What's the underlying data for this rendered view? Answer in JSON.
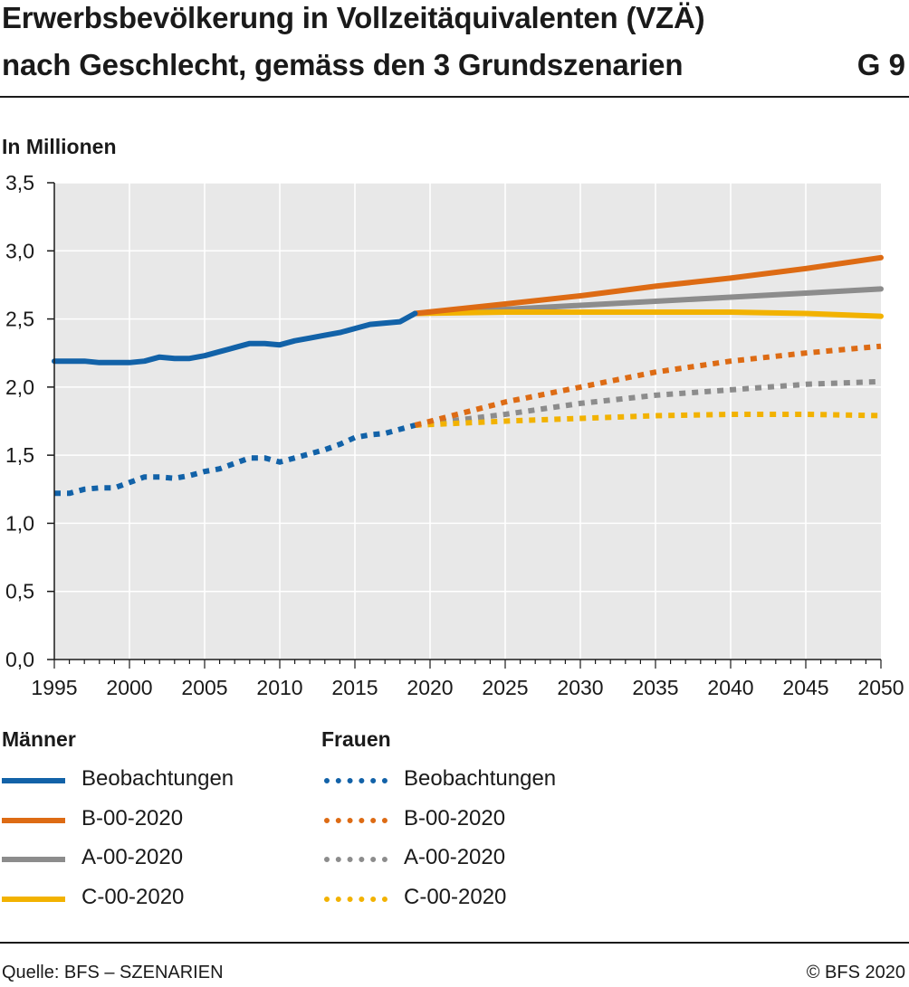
{
  "title": {
    "line1": "Erwerbsbevölkerung in Vollzeitäquivalenten (VZÄ)",
    "line2": "nach Geschlecht, gemäss den 3 Grundszenarien",
    "figure_number": "G 9"
  },
  "unit_label": "In Millionen",
  "legend": {
    "men_heading": "Männer",
    "women_heading": "Frauen",
    "men": [
      "Beobachtungen",
      "B-00-2020",
      "A-00-2020",
      "C-00-2020"
    ],
    "women": [
      "Beobachtungen",
      "B-00-2020",
      "A-00-2020",
      "C-00-2020"
    ]
  },
  "footer": {
    "source": "Quelle: BFS – SZENARIEN",
    "copyright": "© BFS 2020"
  },
  "colors": {
    "observations": "#1262a8",
    "B": "#dd6b14",
    "A": "#8c8c8c",
    "C": "#f2b200",
    "plot_background": "#e8e8e8",
    "grid": "#ffffff"
  },
  "chart_data": {
    "type": "line",
    "ylabel": "In Millionen",
    "xlim": [
      1995,
      2050
    ],
    "ylim": [
      0,
      3.5
    ],
    "x_ticks": [
      1995,
      2000,
      2005,
      2010,
      2015,
      2020,
      2025,
      2030,
      2035,
      2040,
      2045,
      2050
    ],
    "y_ticks": [
      "0,0",
      "0,5",
      "1,0",
      "1,5",
      "2,0",
      "2,5",
      "3,0",
      "3,5"
    ],
    "grid": true,
    "legend_position": "bottom",
    "series": [
      {
        "group": "Männer",
        "name": "Beobachtungen",
        "style": "solid",
        "color": "#1262a8",
        "x": [
          1995,
          1996,
          1997,
          1998,
          1999,
          2000,
          2001,
          2002,
          2003,
          2004,
          2005,
          2006,
          2007,
          2008,
          2009,
          2010,
          2011,
          2012,
          2013,
          2014,
          2015,
          2016,
          2017,
          2018,
          2019
        ],
        "y": [
          2.19,
          2.19,
          2.19,
          2.18,
          2.18,
          2.18,
          2.19,
          2.22,
          2.21,
          2.21,
          2.23,
          2.26,
          2.29,
          2.32,
          2.32,
          2.31,
          2.34,
          2.36,
          2.38,
          2.4,
          2.43,
          2.46,
          2.47,
          2.48,
          2.54
        ]
      },
      {
        "group": "Männer",
        "name": "B-00-2020",
        "style": "solid",
        "color": "#dd6b14",
        "x": [
          2019,
          2025,
          2030,
          2035,
          2040,
          2045,
          2050
        ],
        "y": [
          2.54,
          2.61,
          2.67,
          2.74,
          2.8,
          2.87,
          2.95
        ]
      },
      {
        "group": "Männer",
        "name": "A-00-2020",
        "style": "solid",
        "color": "#8c8c8c",
        "x": [
          2019,
          2025,
          2030,
          2035,
          2040,
          2045,
          2050
        ],
        "y": [
          2.54,
          2.57,
          2.6,
          2.63,
          2.66,
          2.69,
          2.72
        ]
      },
      {
        "group": "Männer",
        "name": "C-00-2020",
        "style": "solid",
        "color": "#f2b200",
        "x": [
          2019,
          2025,
          2030,
          2035,
          2040,
          2045,
          2050
        ],
        "y": [
          2.54,
          2.55,
          2.55,
          2.55,
          2.55,
          2.54,
          2.52
        ]
      },
      {
        "group": "Frauen",
        "name": "Beobachtungen",
        "style": "dotted",
        "color": "#1262a8",
        "x": [
          1995,
          1996,
          1997,
          1998,
          1999,
          2000,
          2001,
          2002,
          2003,
          2004,
          2005,
          2006,
          2007,
          2008,
          2009,
          2010,
          2011,
          2012,
          2013,
          2014,
          2015,
          2016,
          2017,
          2018,
          2019
        ],
        "y": [
          1.22,
          1.22,
          1.25,
          1.26,
          1.26,
          1.3,
          1.34,
          1.34,
          1.33,
          1.35,
          1.38,
          1.4,
          1.44,
          1.48,
          1.48,
          1.45,
          1.48,
          1.51,
          1.54,
          1.58,
          1.63,
          1.65,
          1.66,
          1.69,
          1.72
        ]
      },
      {
        "group": "Frauen",
        "name": "B-00-2020",
        "style": "dotted",
        "color": "#dd6b14",
        "x": [
          2019,
          2025,
          2030,
          2035,
          2040,
          2045,
          2050
        ],
        "y": [
          1.72,
          1.89,
          2.0,
          2.11,
          2.19,
          2.25,
          2.3
        ]
      },
      {
        "group": "Frauen",
        "name": "A-00-2020",
        "style": "dotted",
        "color": "#8c8c8c",
        "x": [
          2019,
          2025,
          2030,
          2035,
          2040,
          2045,
          2050
        ],
        "y": [
          1.72,
          1.8,
          1.88,
          1.94,
          1.98,
          2.02,
          2.04
        ]
      },
      {
        "group": "Frauen",
        "name": "C-00-2020",
        "style": "dotted",
        "color": "#f2b200",
        "x": [
          2019,
          2025,
          2030,
          2035,
          2040,
          2045,
          2050
        ],
        "y": [
          1.72,
          1.75,
          1.77,
          1.79,
          1.8,
          1.8,
          1.79
        ]
      }
    ]
  }
}
